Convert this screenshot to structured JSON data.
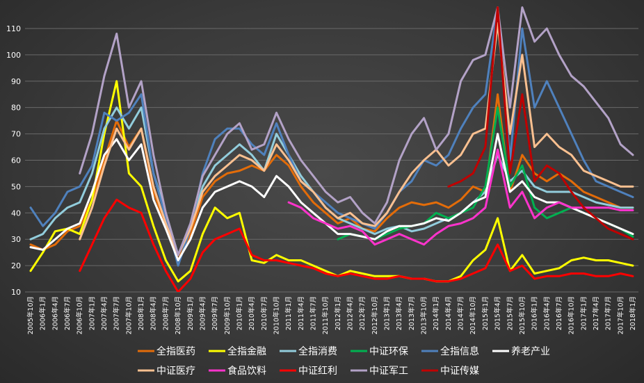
{
  "chart_data": {
    "type": "line",
    "title": "",
    "xlabel": "",
    "ylabel": "",
    "ylim": [
      10,
      115
    ],
    "yticks": [
      10,
      20,
      30,
      40,
      50,
      60,
      70,
      80,
      90,
      100,
      110
    ],
    "grid": "horizontal",
    "legend_position": "bottom",
    "x": [
      "2005年10月",
      "2006年1月",
      "2006年4月",
      "2006年7月",
      "2006年10月",
      "2007年1月",
      "2007年4月",
      "2007年7月",
      "2007年10月",
      "2008年1月",
      "2008年4月",
      "2008年7月",
      "2008年10月",
      "2009年1月",
      "2009年4月",
      "2009年7月",
      "2009年10月",
      "2010年1月",
      "2010年4月",
      "2010年7月",
      "2010年10月",
      "2011年1月",
      "2011年4月",
      "2011年7月",
      "2011年10月",
      "2012年1月",
      "2012年4月",
      "2012年7月",
      "2012年10月",
      "2013年1月",
      "2013年4月",
      "2013年7月",
      "2013年10月",
      "2014年1月",
      "2014年4月",
      "2014年7月",
      "2014年10月",
      "2015年1月",
      "2015年4月",
      "2015年7月",
      "2015年10月",
      "2016年1月",
      "2016年4月",
      "2016年7月",
      "2016年10月",
      "2017年1月",
      "2017年4月",
      "2017年7月",
      "2017年10月",
      "2018年1月"
    ],
    "series": [
      {
        "name": "全指医药",
        "color": "#e36c09",
        "values": [
          28,
          26,
          28,
          33,
          35,
          45,
          60,
          75,
          65,
          72,
          48,
          35,
          22,
          32,
          46,
          52,
          55,
          56,
          58,
          56,
          62,
          58,
          50,
          44,
          40,
          36,
          38,
          34,
          33,
          38,
          42,
          44,
          43,
          44,
          42,
          45,
          50,
          48,
          85,
          48,
          62,
          55,
          52,
          55,
          52,
          48,
          46,
          44,
          42,
          42
        ]
      },
      {
        "name": "全指金融",
        "color": "#ffff00",
        "values": [
          18,
          25,
          33,
          34,
          32,
          45,
          70,
          90,
          55,
          50,
          35,
          22,
          14,
          18,
          32,
          42,
          38,
          40,
          22,
          21,
          24,
          22,
          22,
          20,
          18,
          16,
          18,
          17,
          16,
          16,
          16,
          15,
          15,
          14,
          14,
          16,
          22,
          26,
          38,
          18,
          24,
          17,
          18,
          19,
          22,
          23,
          22,
          22,
          21,
          20
        ]
      },
      {
        "name": "全指消费",
        "color": "#92cddc",
        "values": [
          30,
          32,
          38,
          42,
          44,
          55,
          72,
          80,
          72,
          80,
          55,
          40,
          24,
          35,
          50,
          58,
          62,
          66,
          62,
          56,
          70,
          62,
          54,
          48,
          42,
          38,
          36,
          34,
          32,
          34,
          35,
          33,
          34,
          36,
          38,
          40,
          44,
          48,
          62,
          52,
          56,
          50,
          48,
          48,
          48,
          46,
          44,
          43,
          42,
          42
        ]
      },
      {
        "name": "中证环保",
        "color": "#00b050",
        "values": [
          null,
          null,
          null,
          null,
          null,
          null,
          null,
          null,
          null,
          null,
          null,
          null,
          null,
          null,
          null,
          null,
          null,
          null,
          null,
          null,
          null,
          null,
          null,
          null,
          null,
          30,
          32,
          31,
          30,
          32,
          34,
          35,
          36,
          40,
          38,
          40,
          42,
          50,
          80,
          50,
          58,
          42,
          38,
          40,
          42,
          40,
          38,
          36,
          34,
          31
        ]
      },
      {
        "name": "全指信息",
        "color": "#4f81bd",
        "values": [
          42,
          35,
          40,
          48,
          50,
          58,
          78,
          75,
          78,
          85,
          55,
          38,
          20,
          34,
          55,
          68,
          72,
          72,
          66,
          62,
          74,
          62,
          52,
          48,
          44,
          40,
          38,
          36,
          34,
          40,
          48,
          52,
          60,
          58,
          62,
          72,
          80,
          85,
          118,
          60,
          110,
          80,
          90,
          80,
          70,
          60,
          52,
          50,
          48,
          46
        ]
      },
      {
        "name": "养老产业",
        "color": "#ffffff",
        "values": [
          27,
          26,
          30,
          34,
          36,
          48,
          62,
          68,
          60,
          66,
          45,
          34,
          22,
          30,
          42,
          48,
          50,
          52,
          50,
          46,
          54,
          50,
          44,
          40,
          36,
          32,
          32,
          31,
          30,
          33,
          35,
          35,
          36,
          38,
          37,
          40,
          44,
          46,
          70,
          48,
          52,
          46,
          44,
          44,
          42,
          40,
          38,
          36,
          34,
          32
        ]
      },
      {
        "name": "中证医疗",
        "color": "#fac090",
        "values": [
          null,
          null,
          null,
          null,
          30,
          42,
          58,
          72,
          64,
          72,
          50,
          36,
          24,
          34,
          48,
          54,
          58,
          62,
          60,
          56,
          66,
          60,
          52,
          48,
          42,
          38,
          40,
          36,
          35,
          40,
          48,
          55,
          60,
          64,
          58,
          62,
          70,
          72,
          112,
          70,
          100,
          65,
          70,
          65,
          62,
          56,
          54,
          52,
          50,
          50
        ]
      },
      {
        "name": "食品饮料",
        "color": "#ff33cc",
        "values": [
          null,
          null,
          null,
          null,
          null,
          null,
          null,
          null,
          null,
          null,
          null,
          null,
          null,
          null,
          null,
          null,
          null,
          null,
          null,
          null,
          null,
          44,
          42,
          38,
          36,
          34,
          35,
          33,
          28,
          30,
          32,
          30,
          28,
          32,
          35,
          36,
          38,
          42,
          64,
          42,
          48,
          38,
          42,
          44,
          42,
          42,
          42,
          42,
          41,
          41
        ]
      },
      {
        "name": "中证红利",
        "color": "#ff0000",
        "values": [
          null,
          null,
          null,
          null,
          18,
          28,
          38,
          45,
          42,
          40,
          28,
          18,
          10,
          15,
          25,
          30,
          32,
          34,
          24,
          22,
          22,
          21,
          20,
          19,
          17,
          16,
          17,
          16,
          15,
          15,
          16,
          15,
          15,
          14,
          14,
          15,
          17,
          19,
          28,
          18,
          20,
          15,
          16,
          16,
          17,
          17,
          16,
          16,
          17,
          16
        ]
      },
      {
        "name": "中证军工",
        "color": "#b3a2c7",
        "values": [
          null,
          null,
          null,
          null,
          55,
          70,
          92,
          108,
          80,
          90,
          62,
          40,
          24,
          36,
          54,
          62,
          70,
          74,
          64,
          66,
          78,
          68,
          60,
          54,
          48,
          44,
          46,
          40,
          36,
          44,
          60,
          70,
          76,
          64,
          70,
          90,
          98,
          100,
          118,
          80,
          118,
          105,
          110,
          100,
          92,
          88,
          82,
          76,
          66,
          62
        ]
      },
      {
        "name": "中证传媒",
        "color": "#c00000",
        "values": [
          null,
          null,
          null,
          null,
          null,
          null,
          null,
          null,
          null,
          null,
          null,
          null,
          null,
          null,
          null,
          null,
          null,
          null,
          null,
          null,
          null,
          null,
          null,
          null,
          null,
          null,
          null,
          null,
          null,
          null,
          null,
          null,
          null,
          null,
          50,
          52,
          55,
          65,
          118,
          55,
          85,
          52,
          58,
          55,
          48,
          42,
          38,
          34,
          32,
          30
        ]
      }
    ]
  }
}
